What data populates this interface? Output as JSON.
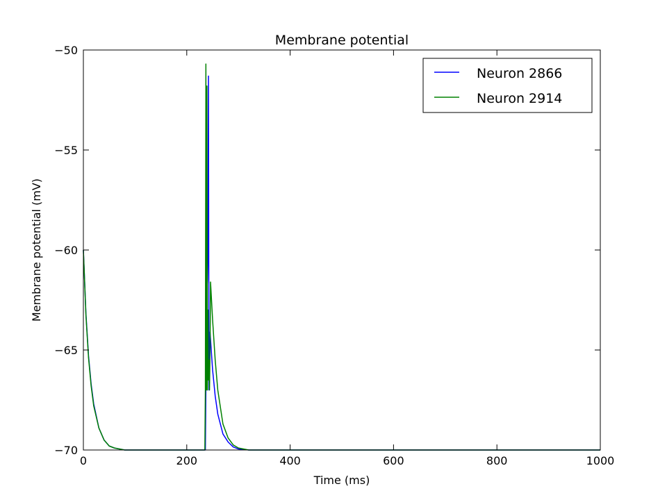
{
  "chart_data": {
    "type": "line",
    "title": "Membrane potential",
    "xlabel": "Time (ms)",
    "ylabel": "Membrane potential (mV)",
    "xlim": [
      0,
      1000
    ],
    "ylim": [
      -70,
      -50
    ],
    "xticks": [
      0,
      200,
      400,
      600,
      800,
      1000
    ],
    "yticks": [
      -50,
      -55,
      -60,
      -65,
      -70
    ],
    "xtick_labels": [
      "0",
      "200",
      "400",
      "600",
      "800",
      "1000"
    ],
    "ytick_labels": [
      "−50",
      "−55",
      "−60",
      "−65",
      "−70"
    ],
    "grid": false,
    "legend_position": "top-right",
    "series": [
      {
        "name": "Neuron 2866",
        "color": "#0000ff",
        "points": [
          [
            0,
            -60
          ],
          [
            5,
            -63.2
          ],
          [
            10,
            -65.3
          ],
          [
            15,
            -66.7
          ],
          [
            20,
            -67.7
          ],
          [
            30,
            -68.9
          ],
          [
            40,
            -69.5
          ],
          [
            50,
            -69.8
          ],
          [
            60,
            -69.9
          ],
          [
            80,
            -70
          ],
          [
            236,
            -70
          ],
          [
            237,
            -67
          ],
          [
            238,
            -64
          ],
          [
            239,
            -62
          ],
          [
            240,
            -61.5
          ],
          [
            241,
            -60
          ],
          [
            242,
            -51.3
          ],
          [
            243,
            -67
          ],
          [
            244,
            -66.5
          ],
          [
            245,
            -64.1
          ],
          [
            250,
            -66
          ],
          [
            255,
            -67.3
          ],
          [
            260,
            -68.2
          ],
          [
            270,
            -69.2
          ],
          [
            280,
            -69.6
          ],
          [
            290,
            -69.85
          ],
          [
            300,
            -69.95
          ],
          [
            320,
            -70
          ],
          [
            1000,
            -70
          ]
        ]
      },
      {
        "name": "Neuron 2914",
        "color": "#008000",
        "points": [
          [
            0,
            -60
          ],
          [
            5,
            -63.3
          ],
          [
            10,
            -65.4
          ],
          [
            15,
            -66.8
          ],
          [
            20,
            -67.8
          ],
          [
            30,
            -68.9
          ],
          [
            40,
            -69.5
          ],
          [
            50,
            -69.8
          ],
          [
            60,
            -69.9
          ],
          [
            80,
            -70
          ],
          [
            235,
            -70
          ],
          [
            236,
            -67
          ],
          [
            237,
            -50.7
          ],
          [
            238,
            -67
          ],
          [
            239,
            -51.8
          ],
          [
            240,
            -67
          ],
          [
            241,
            -63
          ],
          [
            242,
            -66.5
          ],
          [
            243,
            -65.5
          ],
          [
            244,
            -67
          ],
          [
            245,
            -65
          ],
          [
            246,
            -61.6
          ],
          [
            250,
            -63.5
          ],
          [
            255,
            -65.5
          ],
          [
            260,
            -67
          ],
          [
            270,
            -68.7
          ],
          [
            280,
            -69.4
          ],
          [
            290,
            -69.75
          ],
          [
            300,
            -69.9
          ],
          [
            320,
            -70
          ],
          [
            1000,
            -70
          ]
        ]
      }
    ]
  }
}
